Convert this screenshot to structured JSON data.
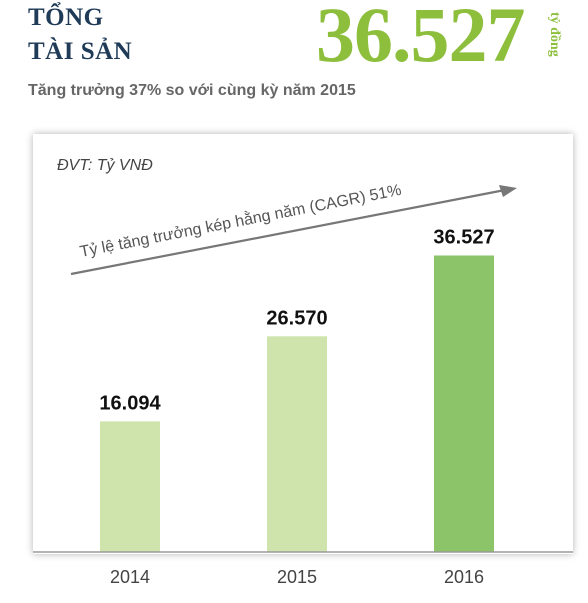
{
  "header": {
    "title_line1": "TỔNG",
    "title_line2": "TÀI SẢN",
    "big_value": "36.527",
    "big_unit": "tỷ đồng",
    "subtitle": "Tăng trưởng 37% so với cùng kỳ năm 2015"
  },
  "chart_data": {
    "type": "bar",
    "unit_label": "ĐVT: Tỷ VNĐ",
    "annotation": "Tỷ lệ tăng trưởng kép hằng năm (CAGR) 51%",
    "categories": [
      "2014",
      "2015",
      "2016"
    ],
    "values": [
      16094,
      26570,
      36527
    ],
    "value_labels": [
      "16.094",
      "26.570",
      "36.527"
    ],
    "ylim": [
      0,
      51000
    ],
    "grid": false,
    "colors": {
      "bar": "#cfe3ad",
      "bar_highlight": "#8cc46a",
      "arrow": "#777777"
    }
  }
}
